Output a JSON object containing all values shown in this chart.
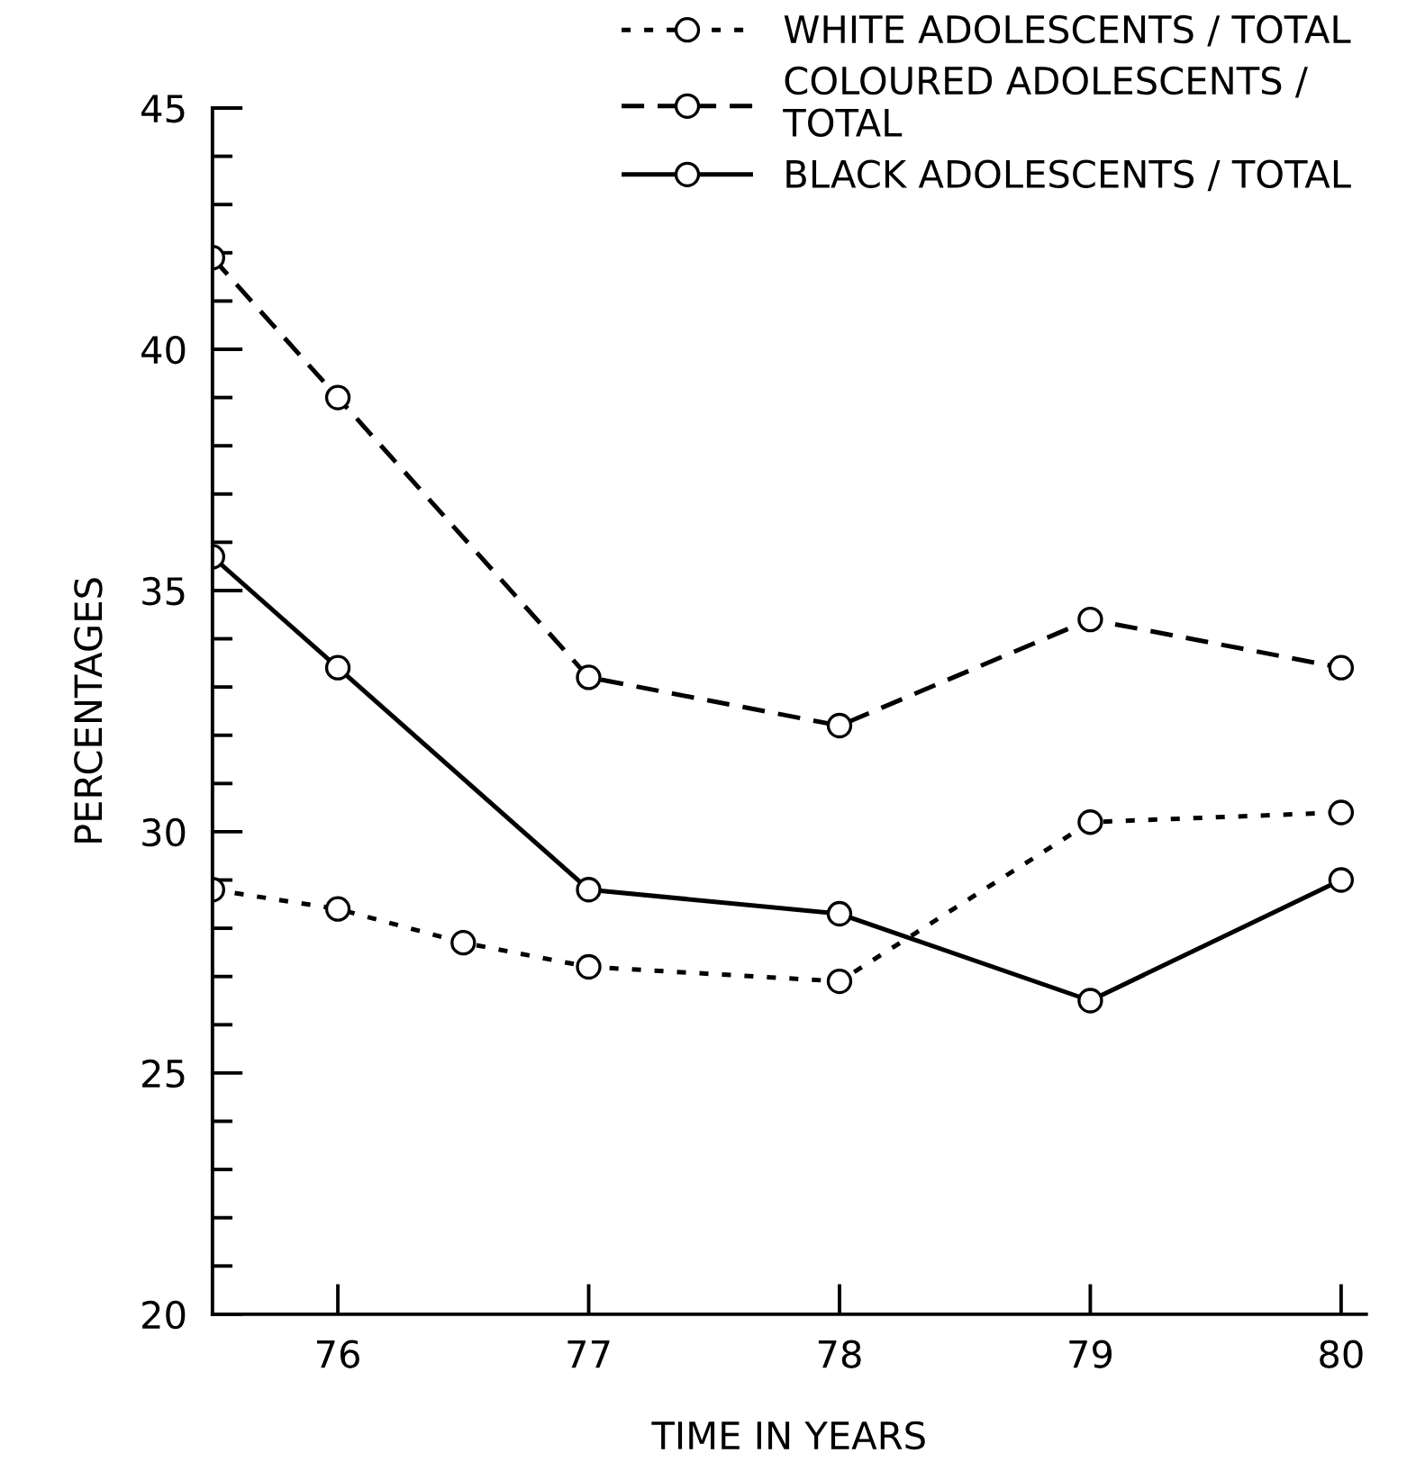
{
  "chart_data": {
    "type": "line",
    "xlabel": "TIME IN YEARS",
    "ylabel": "PERCENTAGES",
    "xlim": [
      75.5,
      80.1
    ],
    "xticks": [
      76,
      77,
      78,
      79,
      80
    ],
    "ylim": [
      20,
      45
    ],
    "yticks": [
      20,
      25,
      30,
      35,
      40,
      45
    ],
    "grid": false,
    "legend": "top right",
    "marker": "circle",
    "series": [
      {
        "name": "WHITE ADOLESCENTS / TOTAL",
        "color": "#000000",
        "line_style": "dotted",
        "x": [
          75.5,
          76,
          76.5,
          77,
          78,
          79,
          80
        ],
        "values": [
          28.8,
          28.4,
          27.7,
          27.2,
          26.9,
          30.2,
          30.4
        ]
      },
      {
        "name": "COLOURED ADOLESCENTS /\nTOTAL",
        "color": "#000000",
        "line_style": "dashed",
        "x": [
          75.5,
          76,
          77,
          78,
          79,
          80
        ],
        "values": [
          41.9,
          39.0,
          33.2,
          32.2,
          34.4,
          33.4
        ]
      },
      {
        "name": "BLACK ADOLESCENTS / TOTAL",
        "color": "#000000",
        "line_style": "solid",
        "x": [
          75.5,
          76,
          77,
          78,
          79,
          80
        ],
        "values": [
          35.7,
          33.4,
          28.8,
          28.3,
          26.5,
          29.0
        ]
      }
    ]
  }
}
